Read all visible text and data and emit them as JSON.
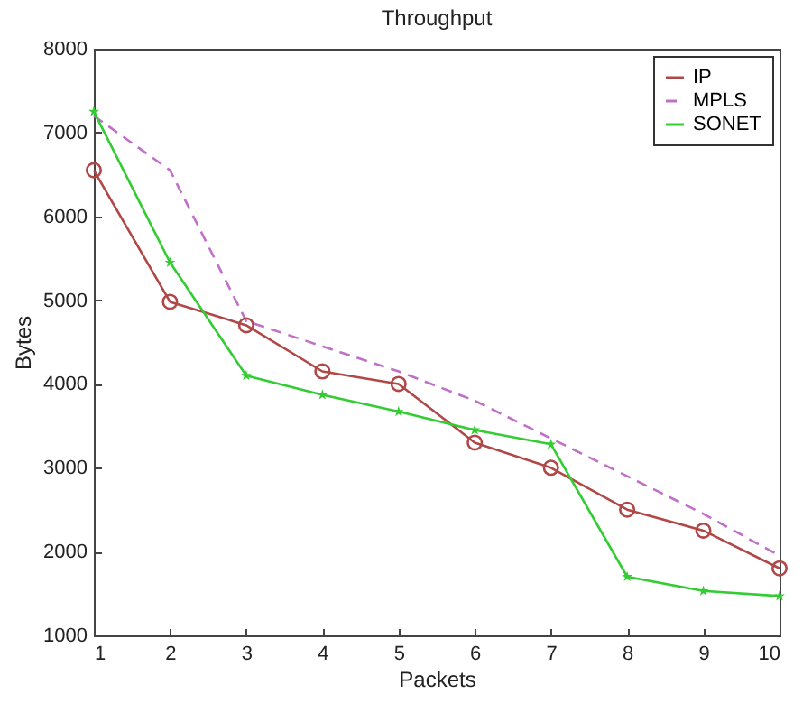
{
  "chart_data": {
    "type": "line",
    "title": "Throughput",
    "xlabel": "Packets",
    "ylabel": "Bytes",
    "x": [
      1,
      2,
      3,
      4,
      5,
      6,
      7,
      8,
      9,
      10
    ],
    "xlim": [
      1,
      10
    ],
    "xticks": [
      1,
      2,
      3,
      4,
      5,
      6,
      7,
      8,
      9,
      10
    ],
    "ylim": [
      1000,
      8000
    ],
    "yticks": [
      1000,
      2000,
      3000,
      4000,
      5000,
      6000,
      7000,
      8000
    ],
    "grid": false,
    "legend": "top right",
    "series": [
      {
        "name": "IP",
        "color": "#b04848",
        "marker": "circle",
        "line_style": "solid",
        "values": [
          6550,
          4980,
          4700,
          4150,
          4000,
          3300,
          3000,
          2500,
          2250,
          1800
        ]
      },
      {
        "name": "MPLS",
        "color": "#c070c8",
        "marker": "none",
        "line_style": "dashed",
        "values": [
          7200,
          6550,
          4750,
          4450,
          4150,
          3800,
          3350,
          2900,
          2450,
          1950
        ]
      },
      {
        "name": "SONET",
        "color": "#33cc33",
        "marker": "star",
        "line_style": "solid",
        "values": [
          7250,
          5450,
          4100,
          3870,
          3670,
          3450,
          3280,
          1700,
          1530,
          1470
        ]
      }
    ]
  }
}
